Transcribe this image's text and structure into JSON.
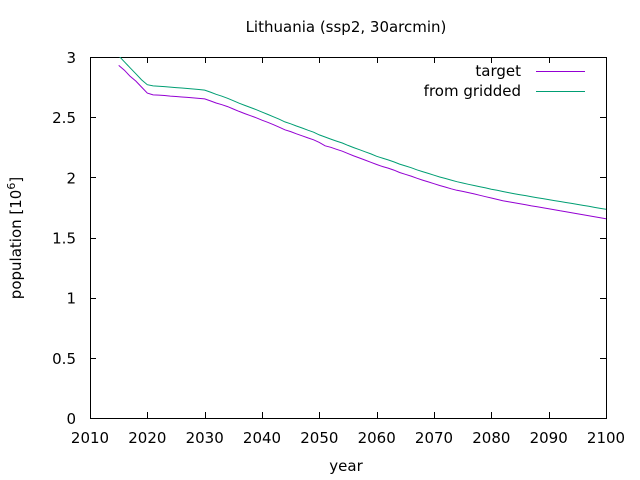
{
  "chart_data": {
    "type": "line",
    "title": "Lithuania (ssp2, 30arcmin)",
    "xlabel": "year",
    "ylabel": "population [10",
    "ylabel_sup": "6",
    "ylabel_close": "]",
    "xlim": [
      2010,
      2100
    ],
    "ylim": [
      0,
      3
    ],
    "xticks": [
      2010,
      2020,
      2030,
      2040,
      2050,
      2060,
      2070,
      2080,
      2090,
      2100
    ],
    "yticks": [
      0,
      0.5,
      1,
      1.5,
      2,
      2.5,
      3
    ],
    "ytick_labels": [
      "0",
      "0.5",
      "1",
      "1.5",
      "2",
      "2.5",
      "3"
    ],
    "legend_position": "top-right",
    "grid": false,
    "series": [
      {
        "name": "target",
        "color": "#9400d3",
        "x": [
          2015,
          2016,
          2017,
          2018,
          2019,
          2020,
          2021,
          2022,
          2023,
          2024,
          2025,
          2026,
          2027,
          2028,
          2029,
          2030,
          2031,
          2032,
          2033,
          2034,
          2035,
          2036,
          2037,
          2038,
          2039,
          2040,
          2041,
          2042,
          2043,
          2044,
          2045,
          2046,
          2047,
          2048,
          2049,
          2050,
          2051,
          2052,
          2053,
          2054,
          2055,
          2056,
          2057,
          2058,
          2059,
          2060,
          2061,
          2062,
          2063,
          2064,
          2065,
          2066,
          2067,
          2068,
          2069,
          2070,
          2071,
          2072,
          2073,
          2074,
          2075,
          2076,
          2077,
          2078,
          2079,
          2080,
          2081,
          2082,
          2083,
          2084,
          2085,
          2086,
          2087,
          2088,
          2089,
          2090,
          2091,
          2092,
          2093,
          2094,
          2095,
          2096,
          2097,
          2098,
          2099,
          2100
        ],
        "y": [
          2.93,
          2.89,
          2.84,
          2.8,
          2.75,
          2.7,
          2.685,
          2.683,
          2.68,
          2.675,
          2.672,
          2.668,
          2.664,
          2.66,
          2.656,
          2.652,
          2.635,
          2.618,
          2.604,
          2.588,
          2.568,
          2.548,
          2.53,
          2.512,
          2.495,
          2.475,
          2.457,
          2.437,
          2.417,
          2.395,
          2.38,
          2.362,
          2.345,
          2.328,
          2.312,
          2.29,
          2.262,
          2.25,
          2.233,
          2.217,
          2.197,
          2.178,
          2.161,
          2.143,
          2.125,
          2.107,
          2.09,
          2.077,
          2.06,
          2.04,
          2.025,
          2.01,
          1.993,
          1.977,
          1.962,
          1.947,
          1.932,
          1.919,
          1.905,
          1.892,
          1.883,
          1.873,
          1.862,
          1.851,
          1.839,
          1.828,
          1.817,
          1.806,
          1.797,
          1.788,
          1.78,
          1.772,
          1.763,
          1.755,
          1.747,
          1.739,
          1.731,
          1.722,
          1.714,
          1.705,
          1.697,
          1.689,
          1.68,
          1.672,
          1.664,
          1.656
        ]
      },
      {
        "name": "from gridded",
        "color": "#009e73",
        "x": [
          2015,
          2016,
          2017,
          2018,
          2019,
          2020,
          2021,
          2022,
          2023,
          2024,
          2025,
          2026,
          2027,
          2028,
          2029,
          2030,
          2031,
          2032,
          2033,
          2034,
          2035,
          2036,
          2037,
          2038,
          2039,
          2040,
          2041,
          2042,
          2043,
          2044,
          2045,
          2046,
          2047,
          2048,
          2049,
          2050,
          2051,
          2052,
          2053,
          2054,
          2055,
          2056,
          2057,
          2058,
          2059,
          2060,
          2061,
          2062,
          2063,
          2064,
          2065,
          2066,
          2067,
          2068,
          2069,
          2070,
          2071,
          2072,
          2073,
          2074,
          2075,
          2076,
          2077,
          2078,
          2079,
          2080,
          2081,
          2082,
          2083,
          2084,
          2085,
          2086,
          2087,
          2088,
          2089,
          2090,
          2091,
          2092,
          2093,
          2094,
          2095,
          2096,
          2097,
          2098,
          2099,
          2100
        ],
        "y": [
          3.01,
          2.96,
          2.91,
          2.86,
          2.81,
          2.77,
          2.76,
          2.757,
          2.754,
          2.75,
          2.746,
          2.742,
          2.738,
          2.734,
          2.73,
          2.725,
          2.708,
          2.69,
          2.674,
          2.657,
          2.637,
          2.616,
          2.598,
          2.58,
          2.562,
          2.542,
          2.523,
          2.503,
          2.483,
          2.461,
          2.445,
          2.427,
          2.41,
          2.392,
          2.375,
          2.353,
          2.335,
          2.318,
          2.301,
          2.285,
          2.265,
          2.247,
          2.23,
          2.212,
          2.195,
          2.175,
          2.16,
          2.145,
          2.128,
          2.11,
          2.095,
          2.08,
          2.063,
          2.048,
          2.033,
          2.018,
          2.003,
          1.99,
          1.977,
          1.964,
          1.953,
          1.942,
          1.932,
          1.922,
          1.912,
          1.901,
          1.892,
          1.882,
          1.873,
          1.864,
          1.856,
          1.848,
          1.839,
          1.831,
          1.823,
          1.815,
          1.807,
          1.799,
          1.791,
          1.783,
          1.775,
          1.767,
          1.759,
          1.75,
          1.742,
          1.734
        ]
      }
    ]
  }
}
